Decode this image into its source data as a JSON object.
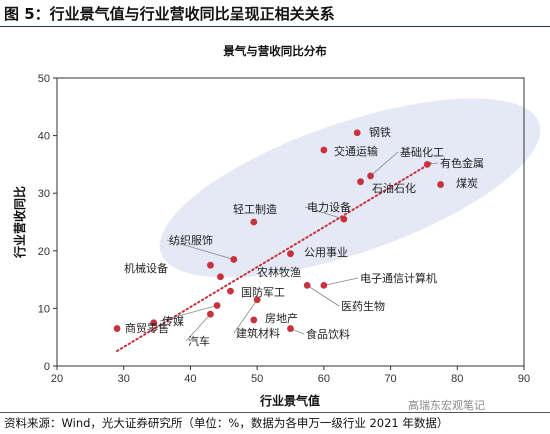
{
  "figure_title": "图 5：行业景气值与行业营收同比呈现正相关关系",
  "source": "资料来源：Wind，光大证券研究所（单位：%，数据为各申万一级行业 2021 年数据）",
  "watermark": "高瑞东宏观笔记",
  "chart_data": {
    "type": "scatter",
    "title": "景气与营收同比分布",
    "xlabel": "行业景气值",
    "ylabel": "行业营收同比",
    "xlim": [
      20,
      90
    ],
    "ylim": [
      0,
      50
    ],
    "xticks": [
      20,
      30,
      40,
      50,
      60,
      70,
      80,
      90
    ],
    "yticks": [
      0,
      10,
      20,
      30,
      40,
      50
    ],
    "grid": false,
    "legend": "none",
    "colors": {
      "point": "#c8323c",
      "trend": "#c8323c",
      "ellipse": "#e4e9f5",
      "leader": "#888888"
    },
    "trendline": {
      "style": "dotted",
      "x": [
        29,
        76
      ],
      "y": [
        2.6,
        35.2
      ]
    },
    "highlight_ellipse": true,
    "points": [
      {
        "label": "钢铁",
        "x": 65,
        "y": 40.5
      },
      {
        "label": "交通运输",
        "x": 60,
        "y": 37.5
      },
      {
        "label": "基础化工",
        "x": 67,
        "y": 33
      },
      {
        "label": "有色金属",
        "x": 75.5,
        "y": 35
      },
      {
        "label": "煤炭",
        "x": 77.5,
        "y": 31.5
      },
      {
        "label": "石油石化",
        "x": 65.5,
        "y": 32
      },
      {
        "label": "电力设备",
        "x": 63,
        "y": 25.5
      },
      {
        "label": "轻工制造",
        "x": 49.5,
        "y": 25
      },
      {
        "label": "纺织服饰",
        "x": 46.5,
        "y": 18.5
      },
      {
        "label": "公用事业",
        "x": 55,
        "y": 19.5
      },
      {
        "label": "机械设备",
        "x": 43,
        "y": 17.5
      },
      {
        "label": "农林牧渔",
        "x": 44.5,
        "y": 15.5
      },
      {
        "label": "电子通信计算机",
        "x": 60,
        "y": 14
      },
      {
        "label": "国防军工",
        "x": 46,
        "y": 13
      },
      {
        "label": "医药生物",
        "x": 57.5,
        "y": 14
      },
      {
        "label": "传媒",
        "x": 44,
        "y": 10.5
      },
      {
        "label": "房地产",
        "x": 49.5,
        "y": 8
      },
      {
        "label": "商贸零售",
        "x": 29,
        "y": 6.5
      },
      {
        "label": "商贸零售-2",
        "x": 34.5,
        "y": 7.5
      },
      {
        "label": "汽车",
        "x": 43,
        "y": 9
      },
      {
        "label": "建筑材料",
        "x": 50,
        "y": 11.5
      },
      {
        "label": "食品饮料",
        "x": 55,
        "y": 6.5
      }
    ]
  }
}
